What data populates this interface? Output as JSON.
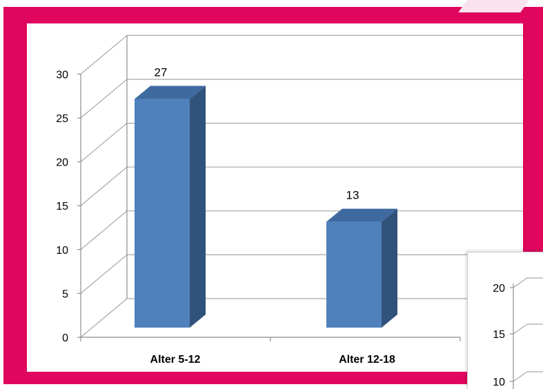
{
  "colors": {
    "frame": "#e0065e",
    "bar_front": "#4f81bd",
    "bar_side": "#31527a",
    "bar_top": "#3f6aa0",
    "grid": "#a6a6a6",
    "axis": "#8c8c8c"
  },
  "chart_data": [
    {
      "type": "bar",
      "style": "3d-column",
      "categories": [
        "Alter 5-12",
        "Alter 12-18"
      ],
      "values": [
        27,
        13
      ],
      "data_labels": [
        "27",
        "13"
      ],
      "yticks": [
        0,
        5,
        10,
        15,
        20,
        25,
        30
      ],
      "ylim": [
        0,
        30
      ],
      "grid": true,
      "legend": "none"
    },
    {
      "type": "bar",
      "partial": true,
      "yticks": [
        10,
        15,
        20
      ],
      "grid": true
    }
  ]
}
